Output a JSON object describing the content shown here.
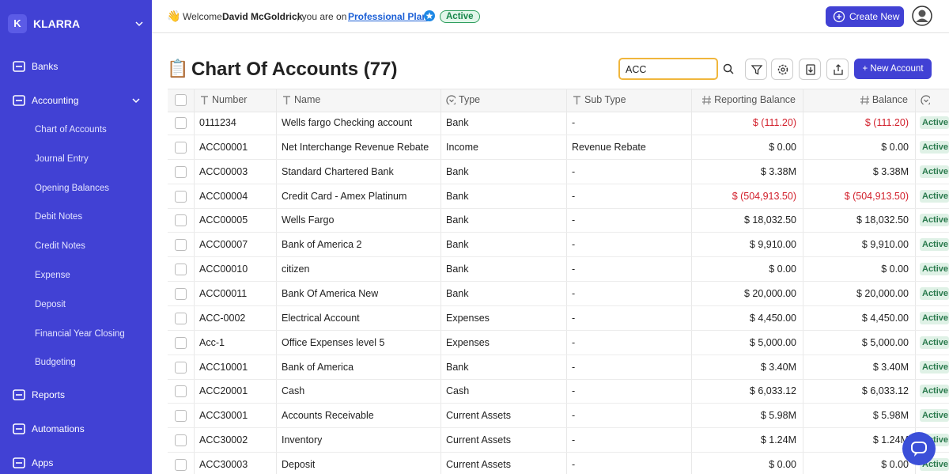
{
  "sidebar": {
    "logo": "K",
    "brand": "KLARRA",
    "nav_top": [
      "Banks",
      "Accounting"
    ],
    "nav_sub": [
      "Chart of Accounts",
      "Journal Entry",
      "Opening Balances",
      "Debit Notes",
      "Credit Notes",
      "Expense",
      "Deposit",
      "Financial Year Closing",
      "Budgeting"
    ],
    "nav_bottom": [
      "Reports",
      "Automations",
      "Apps"
    ]
  },
  "header": {
    "wave": "👋",
    "welcome": "Welcome",
    "user": "David McGoldrick",
    "on": ", you are on",
    "plan": "Professional Plan",
    "status": "Active",
    "create": "Create New"
  },
  "page": {
    "icon": "📋",
    "title": "Chart Of Accounts (77)",
    "search": "ACC",
    "new_button": "+ New Account"
  },
  "table": {
    "columns": [
      "Number",
      "Name",
      "Type",
      "Sub Type",
      "Reporting Balance",
      "Balance"
    ],
    "rows": [
      [
        "0111234",
        "Wells fargo Checking account",
        "Bank",
        "-",
        "$ (111.20)",
        "$ (111.20)",
        "Active"
      ],
      [
        "ACC00001",
        "Net Interchange Revenue Rebate",
        "Income",
        "Revenue Rebate",
        "$ 0.00",
        "$ 0.00",
        "Active"
      ],
      [
        "ACC00003",
        "Standard Chartered Bank",
        "Bank",
        "-",
        "$ 3.38M",
        "$ 3.38M",
        "Active"
      ],
      [
        "ACC00004",
        "Credit Card - Amex Platinum",
        "Bank",
        "-",
        "$ (504,913.50)",
        "$ (504,913.50)",
        "Active"
      ],
      [
        "ACC00005",
        "Wells Fargo",
        "Bank",
        "-",
        "$ 18,032.50",
        "$ 18,032.50",
        "Active"
      ],
      [
        "ACC00007",
        "Bank of America 2",
        "Bank",
        "-",
        "$ 9,910.00",
        "$ 9,910.00",
        "Active"
      ],
      [
        "ACC00010",
        "citizen",
        "Bank",
        "-",
        "$ 0.00",
        "$ 0.00",
        "Active"
      ],
      [
        "ACC00011",
        "Bank Of America New",
        "Bank",
        "-",
        "$ 20,000.00",
        "$ 20,000.00",
        "Active"
      ],
      [
        "ACC-0002",
        "Electrical Account",
        "Expenses",
        "-",
        "$ 4,450.00",
        "$ 4,450.00",
        "Active"
      ],
      [
        "Acc-1",
        "Office Expenses level 5",
        "Expenses",
        "-",
        "$ 5,000.00",
        "$ 5,000.00",
        "Active"
      ],
      [
        "ACC10001",
        "Bank of America",
        "Bank",
        "-",
        "$ 3.40M",
        "$ 3.40M",
        "Active"
      ],
      [
        "ACC20001",
        "Cash",
        "Cash",
        "-",
        "$ 6,033.12",
        "$ 6,033.12",
        "Active"
      ],
      [
        "ACC30001",
        "Accounts Receivable",
        "Current Assets",
        "-",
        "$ 5.98M",
        "$ 5.98M",
        "Active"
      ],
      [
        "ACC30002",
        "Inventory",
        "Current Assets",
        "-",
        "$ 1.24M",
        "$ 1.24M",
        "Active"
      ],
      [
        "ACC30003",
        "Deposit",
        "Current Assets",
        "-",
        "$ 0.00",
        "$ 0.00",
        "Active"
      ]
    ]
  }
}
